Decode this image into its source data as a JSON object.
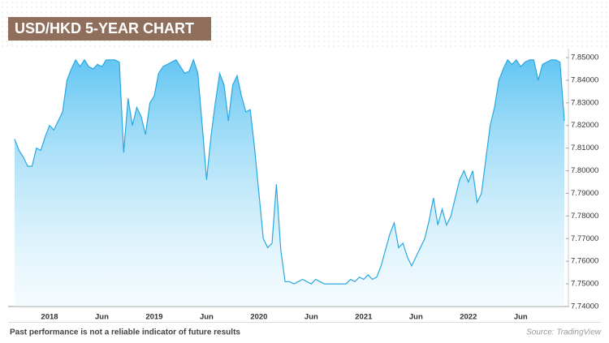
{
  "chart_data": {
    "type": "area",
    "title": "USD/HKD 5-YEAR CHART",
    "footnote": "Past performance is not a reliable indicator of future results",
    "source": "Source: TradingView",
    "categories": [
      null,
      null,
      null,
      null,
      null,
      null,
      null,
      null,
      "2018",
      null,
      null,
      null,
      null,
      null,
      null,
      null,
      null,
      null,
      null,
      null,
      "Jun",
      null,
      null,
      null,
      null,
      null,
      null,
      null,
      null,
      null,
      null,
      null,
      "2019",
      null,
      null,
      null,
      null,
      null,
      null,
      null,
      null,
      null,
      null,
      null,
      "Jun",
      null,
      null,
      null,
      null,
      null,
      null,
      null,
      null,
      null,
      null,
      null,
      "2020",
      null,
      null,
      null,
      null,
      null,
      null,
      null,
      null,
      null,
      null,
      null,
      "Jun",
      null,
      null,
      null,
      null,
      null,
      null,
      null,
      null,
      null,
      null,
      null,
      "2021",
      null,
      null,
      null,
      null,
      null,
      null,
      null,
      null,
      null,
      null,
      null,
      "Jun",
      null,
      null,
      null,
      null,
      null,
      null,
      null,
      null,
      null,
      null,
      null,
      "2022",
      null,
      null,
      null,
      null,
      null,
      null,
      null,
      null,
      null,
      null,
      null,
      "Jun",
      null,
      null,
      null,
      null,
      null,
      null,
      null,
      null,
      null,
      null
    ],
    "values": [
      7.814,
      7.809,
      7.806,
      7.802,
      7.802,
      7.81,
      7.809,
      7.815,
      7.82,
      7.818,
      7.822,
      7.826,
      7.84,
      7.845,
      7.849,
      7.846,
      7.849,
      7.846,
      7.845,
      7.847,
      7.846,
      7.849,
      7.849,
      7.849,
      7.848,
      7.808,
      7.832,
      7.82,
      7.828,
      7.824,
      7.816,
      7.83,
      7.833,
      7.843,
      7.846,
      7.847,
      7.848,
      7.849,
      7.846,
      7.843,
      7.844,
      7.849,
      7.843,
      7.82,
      7.796,
      7.815,
      7.83,
      7.843,
      7.838,
      7.822,
      7.838,
      7.842,
      7.833,
      7.826,
      7.827,
      7.81,
      7.79,
      7.77,
      7.766,
      7.768,
      7.794,
      7.765,
      7.751,
      7.751,
      7.75,
      7.751,
      7.752,
      7.751,
      7.75,
      7.752,
      7.751,
      7.75,
      7.75,
      7.75,
      7.75,
      7.75,
      7.75,
      7.752,
      7.751,
      7.753,
      7.752,
      7.754,
      7.752,
      7.753,
      7.758,
      7.765,
      7.772,
      7.777,
      7.766,
      7.768,
      7.762,
      7.758,
      7.762,
      7.766,
      7.77,
      7.778,
      7.788,
      7.776,
      7.783,
      7.776,
      7.78,
      7.788,
      7.796,
      7.8,
      7.795,
      7.8,
      7.786,
      7.79,
      7.805,
      7.82,
      7.828,
      7.84,
      7.845,
      7.849,
      7.847,
      7.849,
      7.846,
      7.848,
      7.849,
      7.849,
      7.84,
      7.847,
      7.848,
      7.849,
      7.849,
      7.848,
      7.822
    ],
    "color": "#2aa8e0",
    "ylim": [
      7.74,
      7.85
    ],
    "yticks": [
      {
        "value": 7.74,
        "label": "7.74000"
      },
      {
        "value": 7.75,
        "label": "7.75000"
      },
      {
        "value": 7.76,
        "label": "7.76000"
      },
      {
        "value": 7.77,
        "label": "7.77000"
      },
      {
        "value": 7.78,
        "label": "7.78000"
      },
      {
        "value": 7.79,
        "label": "7.79000"
      },
      {
        "value": 7.8,
        "label": "7.80000"
      },
      {
        "value": 7.81,
        "label": "7.81000"
      },
      {
        "value": 7.82,
        "label": "7.82000"
      },
      {
        "value": 7.83,
        "label": "7.83000"
      },
      {
        "value": 7.84,
        "label": "7.84000"
      },
      {
        "value": 7.85,
        "label": "7.85000"
      }
    ],
    "grid": false
  }
}
